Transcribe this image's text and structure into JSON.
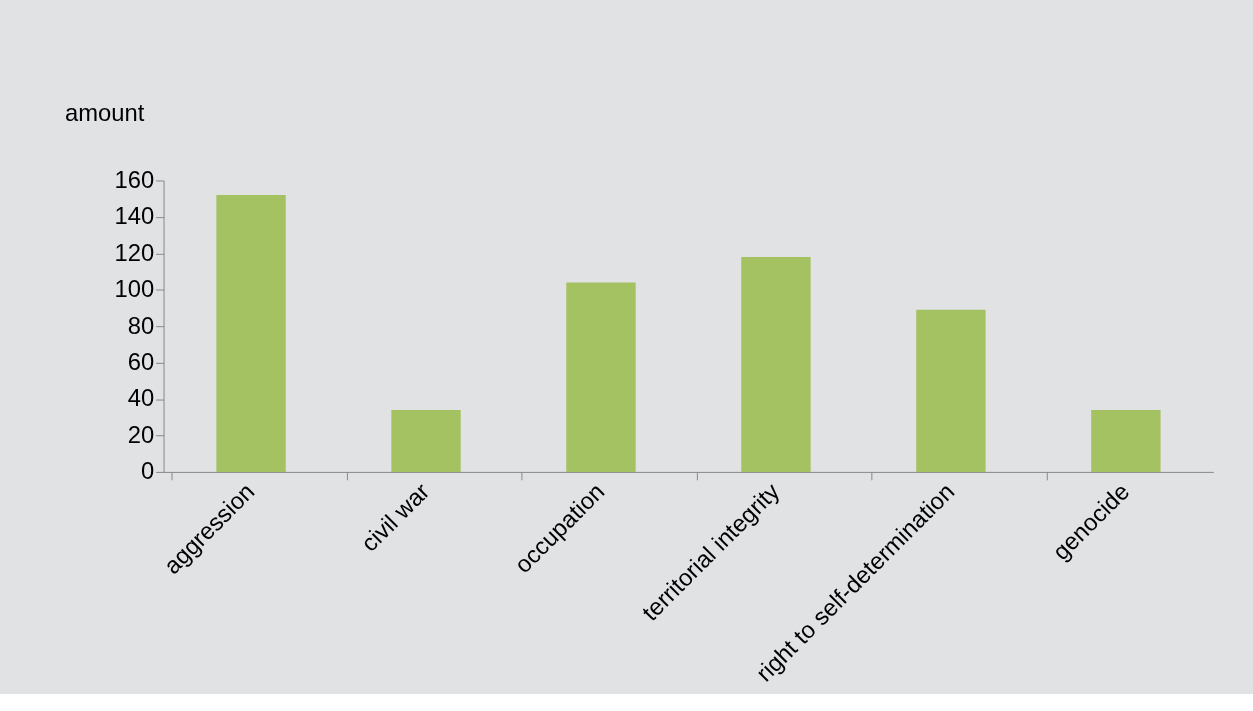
{
  "chart_data": {
    "type": "bar",
    "ylabel": "amount",
    "categories": [
      "aggression",
      "civil war",
      "occupation",
      "territorial integrity",
      "right to self-determination",
      "genocide"
    ],
    "values": [
      152,
      34,
      104,
      118,
      89,
      34
    ],
    "color": "#a5c263",
    "ylim": [
      0,
      160
    ],
    "yticks": [
      0,
      20,
      40,
      60,
      80,
      100,
      120,
      140,
      160
    ],
    "grid": false
  }
}
